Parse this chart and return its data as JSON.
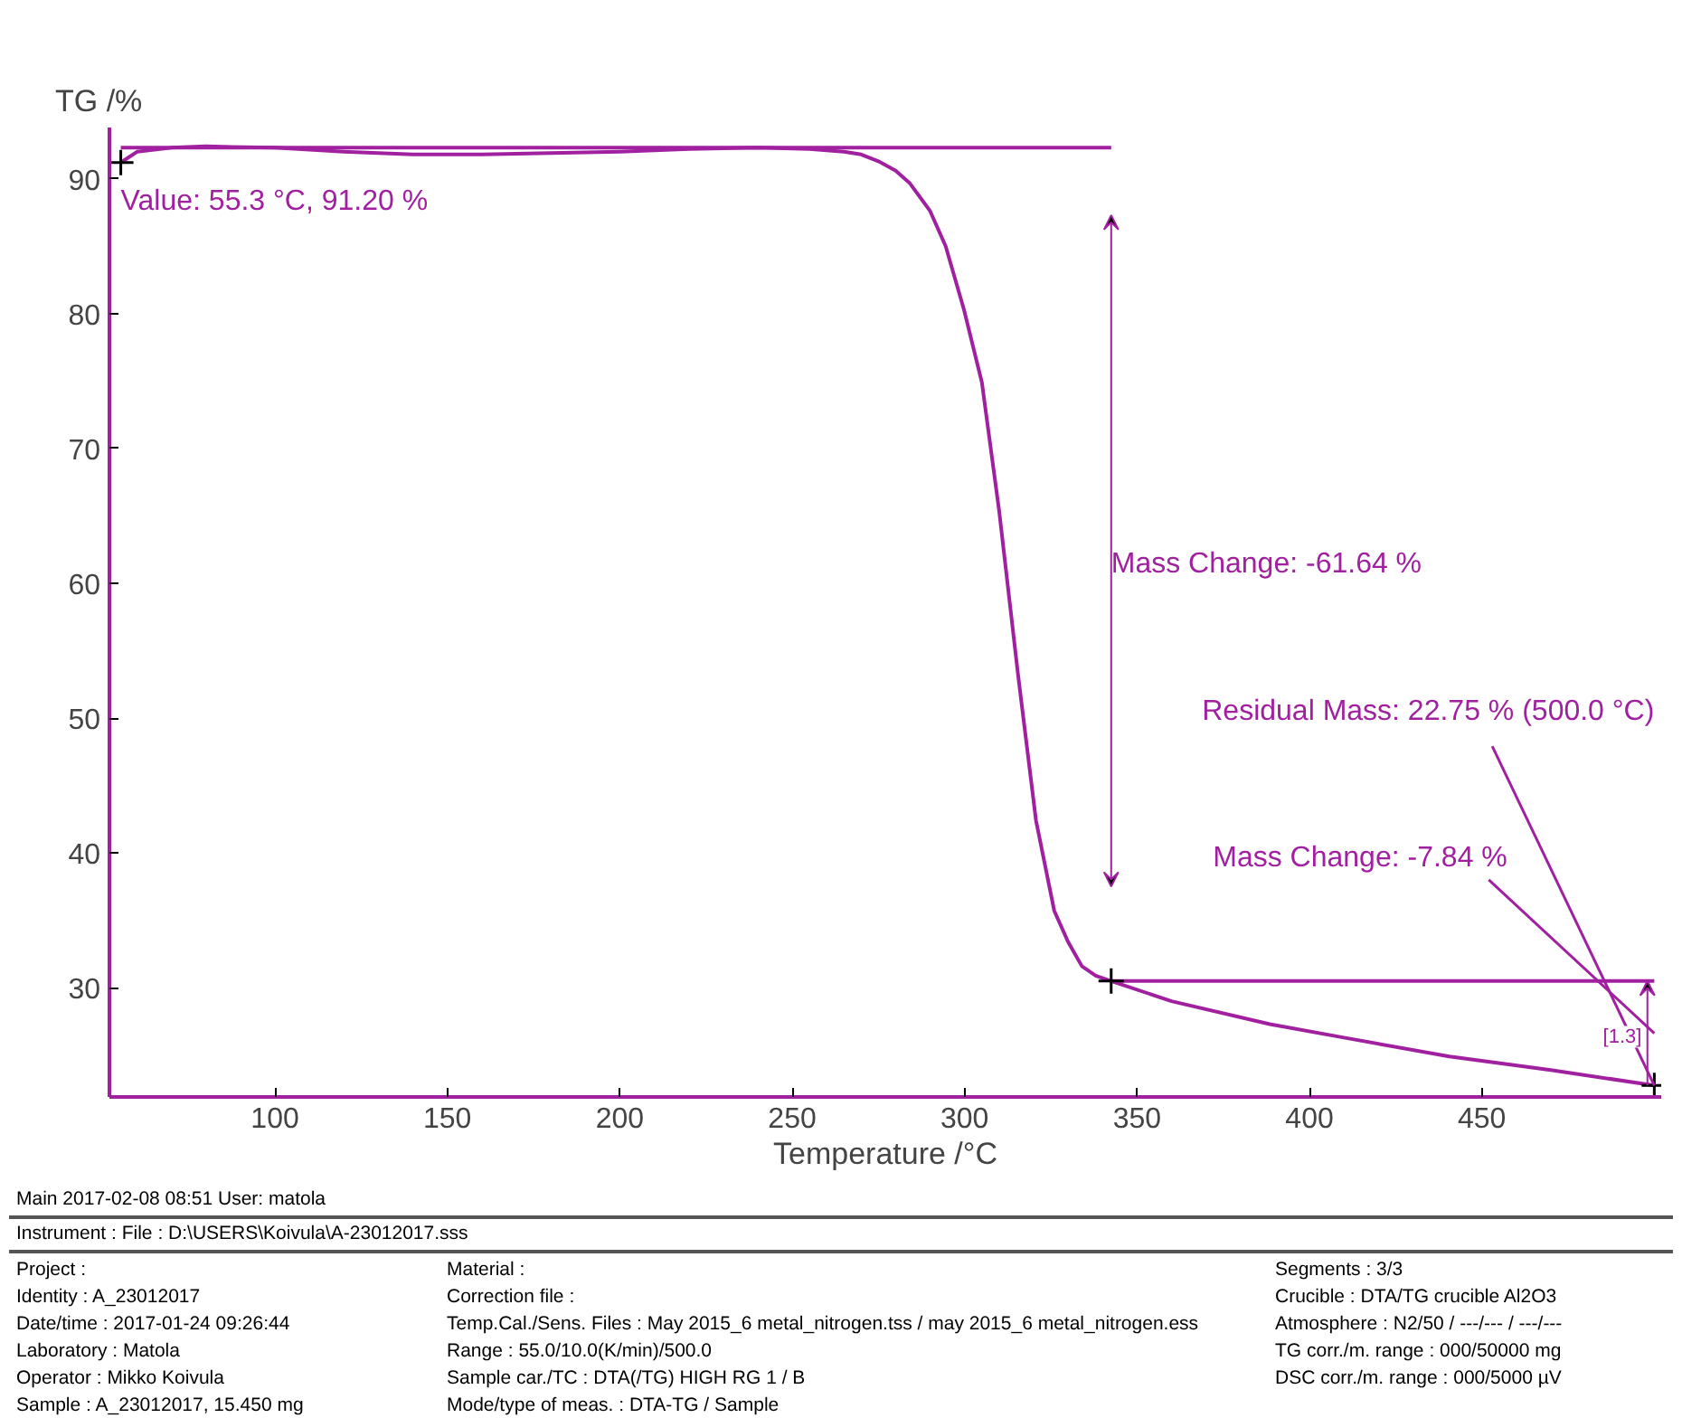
{
  "chart_data": {
    "type": "line",
    "xlabel": "Temperature /°C",
    "ylabel": "TG /%",
    "xlim": [
      52,
      502
    ],
    "ylim": [
      21.9,
      93.8
    ],
    "xticks": [
      100,
      150,
      200,
      250,
      300,
      350,
      400,
      450
    ],
    "yticks": [
      30,
      40,
      50,
      60,
      70,
      80,
      90
    ],
    "series": [
      {
        "color": "#a020a0",
        "x": [
          55.3,
          60,
          70,
          80,
          100,
          120,
          140,
          160,
          180,
          200,
          220,
          240,
          255,
          265,
          270,
          275,
          280,
          284,
          290,
          294.5,
          299.8,
          305,
          310,
          315.5,
          320.7,
          326,
          330,
          334,
          338,
          342.5,
          360,
          388.5,
          410,
          440.6,
          470,
          500
        ],
        "values": [
          91.2,
          92.0,
          92.3,
          92.4,
          92.3,
          92.0,
          91.8,
          91.8,
          91.9,
          92.0,
          92.2,
          92.3,
          92.2,
          92.0,
          91.8,
          91.3,
          90.6,
          89.7,
          87.6,
          85.0,
          80.3,
          74.9,
          65.4,
          53.2,
          42.4,
          35.7,
          33.4,
          31.6,
          30.9,
          30.5,
          29.0,
          27.3,
          26.3,
          24.9,
          23.9,
          22.75
        ]
      },
      {
        "type": "line",
        "color": "#a020a0",
        "x": [
          55.3,
          342.5
        ],
        "values": [
          92.3,
          92.3
        ]
      },
      {
        "type": "line",
        "color": "#a020a0",
        "x": [
          342.5,
          500
        ],
        "values": [
          30.5,
          30.5
        ]
      },
      {
        "type": "scatter",
        "marker": "cross",
        "color": "#000000",
        "x": [
          55.3,
          342.5,
          500
        ],
        "values": [
          91.2,
          30.5,
          22.75
        ]
      }
    ],
    "annotations": [
      {
        "text": "Value: 55.3 °C, 91.20 %",
        "x": 55.3,
        "y": 91.2
      },
      {
        "text": "Residual Mass: 22.75 % (500.0 °C)",
        "x": 500,
        "y": 22.75
      },
      "Mass Change: -61.64 %",
      "Mass Change: -7.84 %",
      "[1.3]",
      "Main   2017-02-08 08:51   User: matola",
      "Instrument :      File :  D:\\USERS\\Koivula\\A-23012017.sss",
      "Project :",
      "Identity :  A_23012017",
      "Date/time :  2017-01-24 09:26:44",
      "Laboratory :  Matola",
      "Operator :  Mikko Koivula",
      "Sample :  A_23012017, 15.450 mg",
      "Material :",
      "Correction file :",
      "Temp.Cal./Sens. Files :  May 2015_6 metal_nitrogen.tss / may 2015_6 metal_nitrogen.ess",
      "Range :  55.0/10.0(K/min)/500.0",
      "Sample car./TC :  DTA(/TG) HIGH RG 1 / B",
      "Mode/type of meas. :  DTA-TG / Sample",
      "Segments :  3/3",
      "Crucible :  DTA/TG crucible Al2O3",
      "Atmosphere :  N2/50 / ---/--- / ---/---",
      "TG corr./m. range :  000/50000 mg",
      "DSC corr./m. range :  000/5000 µV"
    ]
  }
}
